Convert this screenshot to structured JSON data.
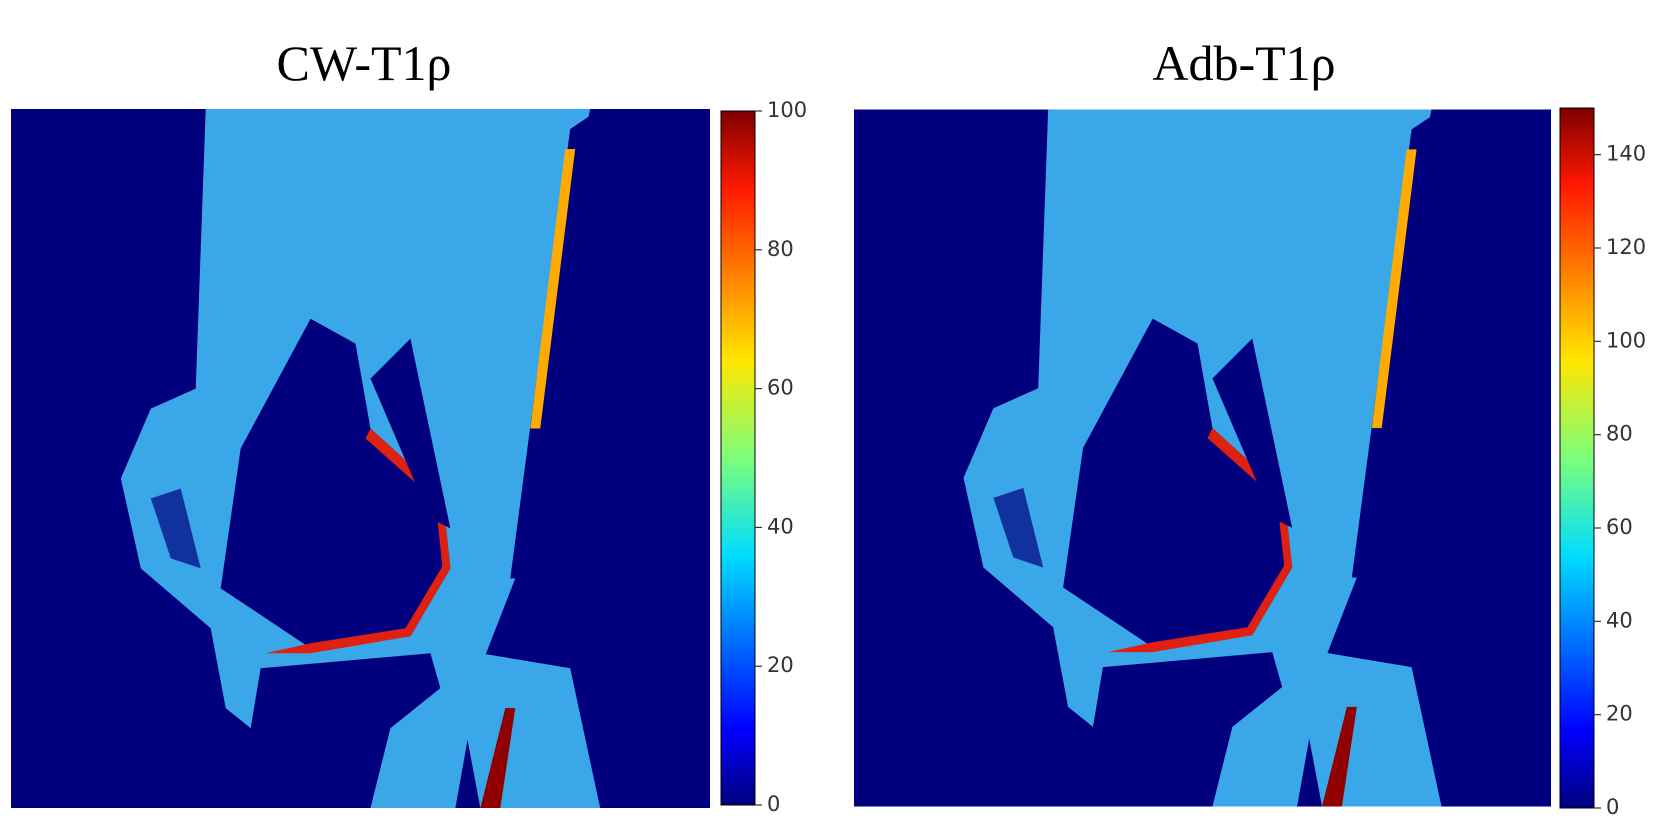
{
  "panels": [
    {
      "title": "CW-T1ρ",
      "colorbar": {
        "lim": [
          0,
          100
        ],
        "ticks": [
          0,
          20,
          40,
          60,
          80,
          100
        ]
      }
    },
    {
      "title": "Adb-T1ρ",
      "colorbar": {
        "lim": [
          0,
          150
        ],
        "ticks": [
          0,
          20,
          40,
          60,
          80,
          100,
          120,
          140
        ]
      }
    }
  ]
}
